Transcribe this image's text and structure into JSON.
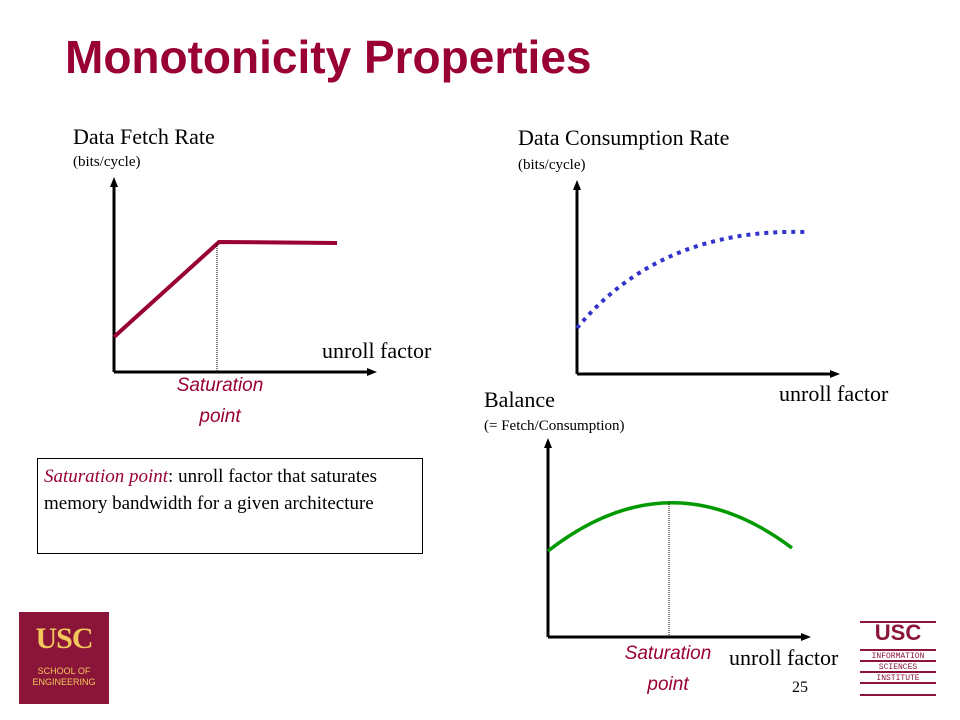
{
  "title": "Monotonicity Properties",
  "colors": {
    "accent": "#990033",
    "consumption": "#3333cc",
    "balance": "#009900"
  },
  "fetch_chart": {
    "ylabel": "Data Fetch Rate",
    "ylabel_unit": "(bits/cycle)",
    "xlabel": "unroll factor",
    "saturation_line1": "Saturation",
    "saturation_line2": "point"
  },
  "consumption_chart": {
    "ylabel": "Data Consumption Rate",
    "ylabel_unit": "(bits/cycle)",
    "xlabel": "unroll factor"
  },
  "balance_chart": {
    "ylabel": "Balance",
    "ylabel_unit": "(= Fetch/Consumption)",
    "xlabel": "unroll factor",
    "saturation_line1": "Saturation",
    "saturation_line2": "point"
  },
  "definition": {
    "term": "Saturation point",
    "text": ": unroll factor that saturates memory bandwidth for a given architecture"
  },
  "logo_left": {
    "name": "USC",
    "line1": "SCHOOL OF",
    "line2": "ENGINEERING"
  },
  "logo_right": {
    "name": "USC",
    "line1": "INFORMATION",
    "line2": "SCIENCES",
    "line3": "INSTITUTE"
  },
  "page_number": "25"
}
